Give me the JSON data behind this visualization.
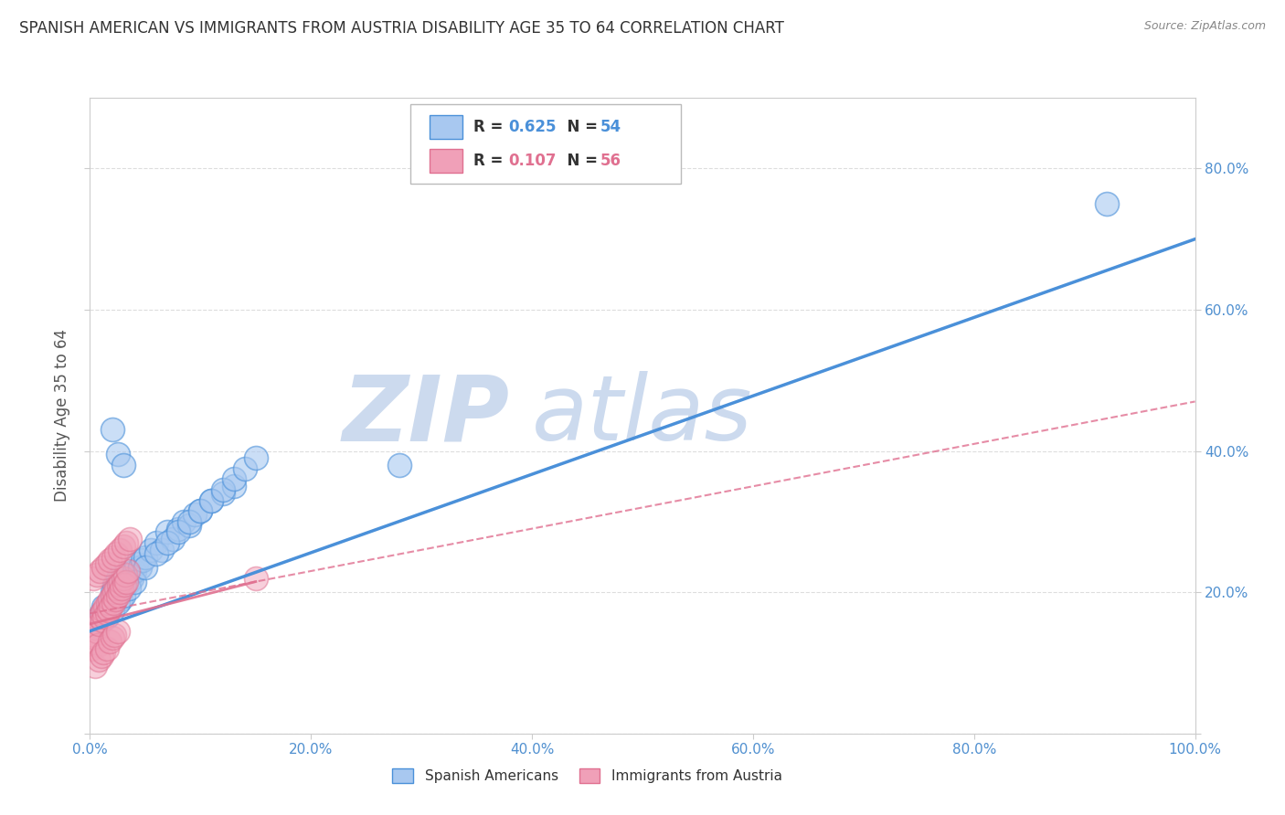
{
  "title": "SPANISH AMERICAN VS IMMIGRANTS FROM AUSTRIA DISABILITY AGE 35 TO 64 CORRELATION CHART",
  "source": "Source: ZipAtlas.com",
  "ylabel": "Disability Age 35 to 64",
  "xlim": [
    0,
    1.0
  ],
  "ylim": [
    0,
    0.9
  ],
  "xticks": [
    0.0,
    0.2,
    0.4,
    0.6,
    0.8,
    1.0
  ],
  "yticks": [
    0.0,
    0.2,
    0.4,
    0.6,
    0.8
  ],
  "xticklabels": [
    "0.0%",
    "20.0%",
    "40.0%",
    "60.0%",
    "80.0%",
    "100.0%"
  ],
  "ytick_right_labels": [
    "",
    "20.0%",
    "40.0%",
    "60.0%",
    "80.0%"
  ],
  "series1_label": "Spanish Americans",
  "series2_label": "Immigrants from Austria",
  "series1_color": "#a8c8f0",
  "series2_color": "#f0a0b8",
  "series1_R": 0.625,
  "series1_N": 54,
  "series2_R": 0.107,
  "series2_N": 56,
  "line1_color": "#4a90d9",
  "line2_color": "#e07090",
  "background_color": "#ffffff",
  "watermark": "ZIPatlas",
  "watermark_color": "#ccdaee",
  "tick_color": "#5090d0",
  "series1_x": [
    0.005,
    0.008,
    0.01,
    0.012,
    0.015,
    0.018,
    0.02,
    0.022,
    0.025,
    0.028,
    0.03,
    0.032,
    0.035,
    0.038,
    0.04,
    0.042,
    0.045,
    0.048,
    0.05,
    0.055,
    0.06,
    0.065,
    0.07,
    0.075,
    0.08,
    0.085,
    0.09,
    0.095,
    0.1,
    0.11,
    0.12,
    0.13,
    0.015,
    0.02,
    0.025,
    0.03,
    0.035,
    0.04,
    0.05,
    0.06,
    0.07,
    0.08,
    0.09,
    0.1,
    0.11,
    0.12,
    0.13,
    0.14,
    0.15,
    0.02,
    0.025,
    0.03,
    0.28,
    0.92
  ],
  "series1_y": [
    0.155,
    0.16,
    0.17,
    0.18,
    0.175,
    0.185,
    0.2,
    0.21,
    0.22,
    0.19,
    0.21,
    0.225,
    0.215,
    0.22,
    0.23,
    0.24,
    0.235,
    0.245,
    0.25,
    0.26,
    0.27,
    0.26,
    0.285,
    0.275,
    0.29,
    0.3,
    0.295,
    0.31,
    0.315,
    0.33,
    0.34,
    0.35,
    0.165,
    0.175,
    0.185,
    0.195,
    0.205,
    0.215,
    0.235,
    0.255,
    0.27,
    0.285,
    0.3,
    0.315,
    0.33,
    0.345,
    0.36,
    0.375,
    0.39,
    0.43,
    0.395,
    0.38,
    0.38,
    0.75
  ],
  "series2_x": [
    0.001,
    0.002,
    0.003,
    0.004,
    0.005,
    0.006,
    0.007,
    0.008,
    0.009,
    0.01,
    0.011,
    0.012,
    0.013,
    0.014,
    0.015,
    0.016,
    0.017,
    0.018,
    0.019,
    0.02,
    0.021,
    0.022,
    0.023,
    0.024,
    0.025,
    0.026,
    0.027,
    0.028,
    0.029,
    0.03,
    0.031,
    0.032,
    0.033,
    0.034,
    0.005,
    0.008,
    0.01,
    0.012,
    0.015,
    0.018,
    0.02,
    0.022,
    0.025,
    0.003,
    0.006,
    0.009,
    0.012,
    0.015,
    0.018,
    0.021,
    0.024,
    0.027,
    0.03,
    0.033,
    0.036,
    0.15
  ],
  "series2_y": [
    0.12,
    0.13,
    0.14,
    0.15,
    0.135,
    0.145,
    0.125,
    0.155,
    0.165,
    0.17,
    0.16,
    0.175,
    0.165,
    0.18,
    0.17,
    0.185,
    0.175,
    0.19,
    0.18,
    0.195,
    0.185,
    0.2,
    0.19,
    0.205,
    0.195,
    0.21,
    0.2,
    0.215,
    0.205,
    0.22,
    0.21,
    0.225,
    0.215,
    0.23,
    0.095,
    0.105,
    0.11,
    0.115,
    0.12,
    0.13,
    0.135,
    0.14,
    0.145,
    0.22,
    0.225,
    0.23,
    0.235,
    0.24,
    0.245,
    0.25,
    0.255,
    0.26,
    0.265,
    0.27,
    0.275,
    0.22
  ],
  "line1_x0": 0.0,
  "line1_y0": 0.145,
  "line1_x1": 1.0,
  "line1_y1": 0.7,
  "line2_x0": 0.0,
  "line2_y0": 0.17,
  "line2_x1": 1.0,
  "line2_y1": 0.47
}
